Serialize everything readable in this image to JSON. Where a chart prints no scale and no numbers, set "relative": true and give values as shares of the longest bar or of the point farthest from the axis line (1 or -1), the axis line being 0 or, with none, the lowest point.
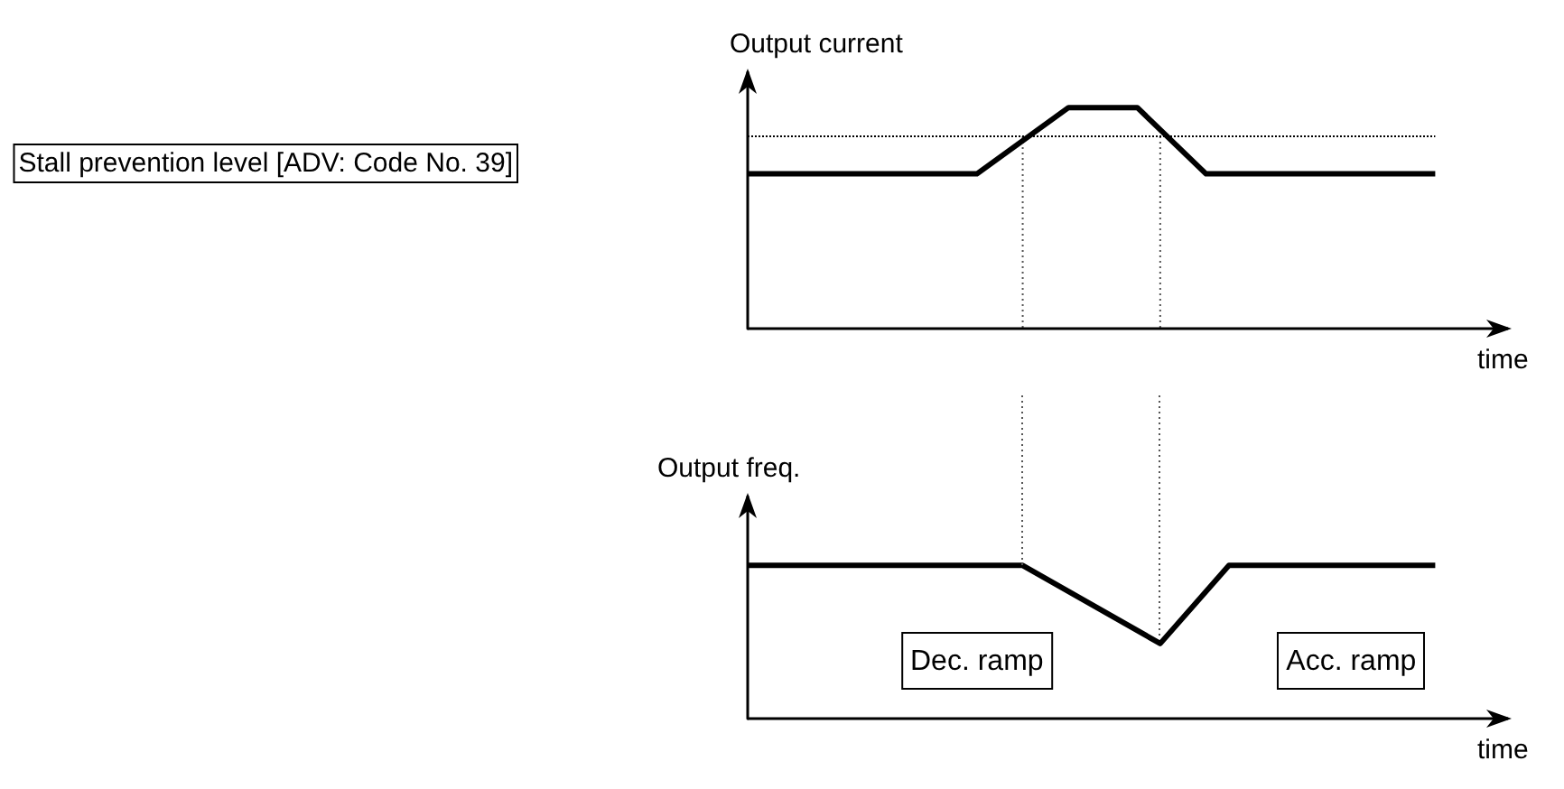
{
  "chart_data": [
    {
      "type": "line",
      "relative": true,
      "ylabel": "Output current",
      "xlabel": "time",
      "marker": "none",
      "line_style": "solid",
      "categories": [
        null,
        null,
        null,
        null,
        null,
        null,
        null,
        null,
        null,
        null,
        null,
        null,
        null,
        null,
        null,
        null,
        null,
        null,
        null,
        null,
        null,
        null,
        null,
        null,
        null,
        null,
        null,
        null,
        null,
        null,
        null
      ],
      "series": [
        {
          "color": "#000000",
          "values": [
            0.7,
            null,
            null,
            null,
            null,
            null,
            null,
            null,
            null,
            null,
            0.7,
            null,
            null,
            null,
            1,
            null,
            null,
            1,
            null,
            null,
            0.7,
            null,
            null,
            null,
            null,
            null,
            null,
            null,
            null,
            null,
            0.7
          ]
        }
      ],
      "ref_lines": [
        {
          "axis": "y",
          "value": 0.87,
          "label": "Stall prevention level [ADV: Code No. 39]",
          "color": "#000000",
          "line_style": "dotted"
        }
      ]
    },
    {
      "type": "line",
      "relative": true,
      "ylabel": "Output freq.",
      "xlabel": "time",
      "marker": "none",
      "line_style": "solid",
      "categories": [
        null,
        null,
        null,
        null,
        null,
        null,
        null,
        null,
        null,
        null,
        null,
        null,
        null,
        null,
        null,
        null,
        null,
        null,
        null,
        null,
        null,
        null,
        null,
        null,
        null,
        null,
        null,
        null,
        null,
        null,
        null
      ],
      "series": [
        {
          "color": "#000000",
          "values": [
            1,
            null,
            null,
            null,
            null,
            null,
            null,
            null,
            null,
            null,
            null,
            null,
            1,
            null,
            null,
            null,
            null,
            null,
            0.49,
            null,
            null,
            1,
            null,
            null,
            null,
            null,
            null,
            null,
            null,
            null,
            1
          ]
        }
      ],
      "annotations": [
        "Dec. ramp",
        "Acc. ramp"
      ]
    }
  ]
}
